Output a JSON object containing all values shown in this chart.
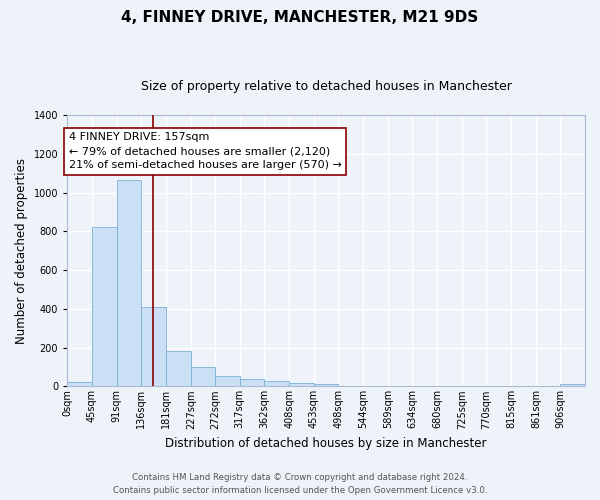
{
  "title": "4, FINNEY DRIVE, MANCHESTER, M21 9DS",
  "subtitle": "Size of property relative to detached houses in Manchester",
  "xlabel": "Distribution of detached houses by size in Manchester",
  "ylabel": "Number of detached properties",
  "bar_color": "#cce0f5",
  "bar_edge_color": "#7ab0d4",
  "bar_heights": [
    25,
    820,
    1065,
    410,
    180,
    100,
    55,
    38,
    28,
    15,
    10,
    0,
    0,
    0,
    0,
    0,
    0,
    0,
    0,
    0,
    10
  ],
  "bin_edges": [
    0,
    45,
    91,
    136,
    181,
    227,
    272,
    317,
    362,
    408,
    453,
    498,
    544,
    589,
    634,
    680,
    725,
    770,
    815,
    861,
    906,
    951
  ],
  "tick_labels": [
    "0sqm",
    "45sqm",
    "91sqm",
    "136sqm",
    "181sqm",
    "227sqm",
    "272sqm",
    "317sqm",
    "362sqm",
    "408sqm",
    "453sqm",
    "498sqm",
    "544sqm",
    "589sqm",
    "634sqm",
    "680sqm",
    "725sqm",
    "770sqm",
    "815sqm",
    "861sqm",
    "906sqm"
  ],
  "vline_x": 157,
  "vline_color": "#8b0000",
  "annotation_line1": "4 FINNEY DRIVE: 157sqm",
  "annotation_line2": "← 79% of detached houses are smaller (2,120)",
  "annotation_line3": "21% of semi-detached houses are larger (570) →",
  "annotation_box_color": "#ffffff",
  "annotation_box_edge": "#8b0000",
  "ylim": [
    0,
    1400
  ],
  "yticks": [
    0,
    200,
    400,
    600,
    800,
    1000,
    1200,
    1400
  ],
  "footer_line1": "Contains HM Land Registry data © Crown copyright and database right 2024.",
  "footer_line2": "Contains public sector information licensed under the Open Government Licence v3.0.",
  "bg_color": "#eef2f9",
  "plot_bg_color": "#eef2f9",
  "grid_color": "#ffffff",
  "title_fontsize": 11,
  "subtitle_fontsize": 9,
  "tick_fontsize": 7,
  "label_fontsize": 8.5,
  "annotation_fontsize": 8
}
